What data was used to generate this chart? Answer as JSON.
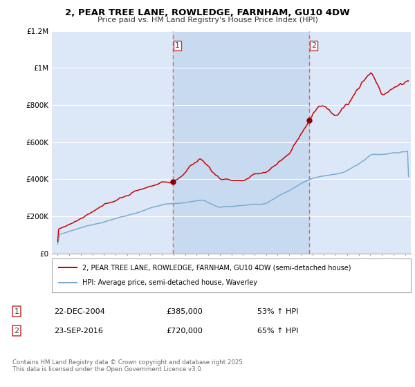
{
  "title": "2, PEAR TREE LANE, ROWLEDGE, FARNHAM, GU10 4DW",
  "subtitle": "Price paid vs. HM Land Registry's House Price Index (HPI)",
  "legend_line1": "2, PEAR TREE LANE, ROWLEDGE, FARNHAM, GU10 4DW (semi-detached house)",
  "legend_line2": "HPI: Average price, semi-detached house, Waverley",
  "footer": "Contains HM Land Registry data © Crown copyright and database right 2025.\nThis data is licensed under the Open Government Licence v3.0.",
  "sale1_label": "1",
  "sale1_date": "22-DEC-2004",
  "sale1_price": "£385,000",
  "sale1_hpi": "53% ↑ HPI",
  "sale2_label": "2",
  "sale2_date": "23-SEP-2016",
  "sale2_price": "£720,000",
  "sale2_hpi": "65% ↑ HPI",
  "sale1_x": 2004.97,
  "sale2_x": 2016.73,
  "sale1_price_val": 385000,
  "sale2_price_val": 720000,
  "vline1_x": 2004.97,
  "vline2_x": 2016.73,
  "ylim": [
    0,
    1200000
  ],
  "xlim_start": 1994.5,
  "xlim_end": 2025.5,
  "fig_bg": "#ffffff",
  "plot_bg": "#dce8f8",
  "span_color": "#c8daf0",
  "red_color": "#cc0000",
  "blue_color": "#7aabce",
  "vline_color": "#e86060",
  "grid_color": "#ffffff",
  "label_box_edge": "#cc3333"
}
